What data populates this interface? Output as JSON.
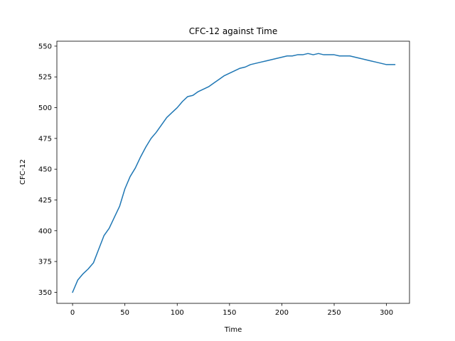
{
  "chart_data": {
    "type": "line",
    "title": "CFC-12 against Time",
    "xlabel": "Time",
    "ylabel": "CFC-12",
    "xlim": [
      -15,
      322
    ],
    "ylim": [
      341,
      554
    ],
    "grid": false,
    "xticks": [
      0,
      50,
      100,
      150,
      200,
      250,
      300
    ],
    "yticks": [
      350,
      375,
      400,
      425,
      450,
      475,
      500,
      525,
      550
    ],
    "series": [
      {
        "color": "#1f77b4",
        "x": [
          0,
          5,
          10,
          15,
          20,
          25,
          30,
          35,
          40,
          45,
          50,
          55,
          60,
          65,
          70,
          75,
          80,
          85,
          90,
          95,
          100,
          105,
          110,
          115,
          120,
          125,
          130,
          135,
          140,
          145,
          150,
          155,
          160,
          165,
          170,
          175,
          180,
          185,
          190,
          195,
          200,
          205,
          210,
          215,
          220,
          225,
          230,
          235,
          240,
          245,
          250,
          255,
          260,
          265,
          270,
          275,
          280,
          285,
          290,
          295,
          300,
          305,
          308
        ],
        "values": [
          350,
          360,
          365,
          369,
          374,
          385,
          396,
          402,
          411,
          420,
          434,
          444,
          451,
          460,
          468,
          475,
          480,
          486,
          492,
          496,
          500,
          505,
          509,
          510,
          513,
          515,
          517,
          520,
          523,
          526,
          528,
          530,
          532,
          533,
          535,
          536,
          537,
          538,
          539,
          540,
          541,
          542,
          542,
          543,
          543,
          544,
          543,
          544,
          543,
          543,
          543,
          542,
          542,
          542,
          541,
          540,
          539,
          538,
          537,
          536,
          535,
          535,
          535
        ]
      }
    ]
  }
}
